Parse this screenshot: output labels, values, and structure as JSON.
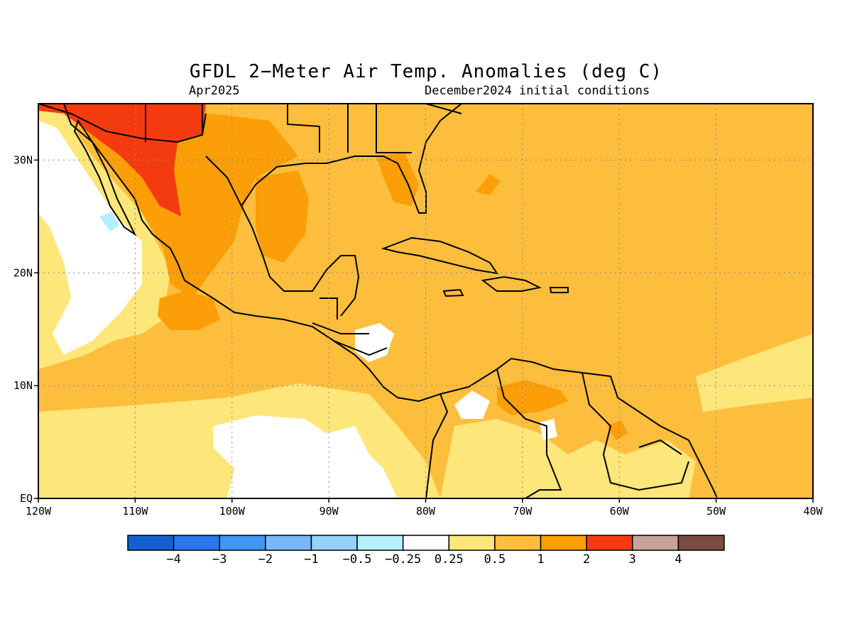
{
  "map": {
    "title": "GFDL 2−Meter Air Temp. Anomalies (deg C)",
    "valid_month": "Apr2025",
    "initial_conditions": "December2024 initial conditions",
    "region": {
      "lon_min": -120,
      "lon_max": -40,
      "lat_min": 0,
      "lat_max": 35
    },
    "lon_ticks": [
      {
        "value": -120,
        "label": "120W"
      },
      {
        "value": -110,
        "label": "110W"
      },
      {
        "value": -100,
        "label": "100W"
      },
      {
        "value": -90,
        "label": "90W"
      },
      {
        "value": -80,
        "label": "80W"
      },
      {
        "value": -70,
        "label": "70W"
      },
      {
        "value": -60,
        "label": "60W"
      },
      {
        "value": -50,
        "label": "50W"
      },
      {
        "value": -40,
        "label": "40W"
      }
    ],
    "lat_ticks": [
      {
        "value": 0,
        "label": "EQ"
      },
      {
        "value": 10,
        "label": "10N"
      },
      {
        "value": 20,
        "label": "20N"
      },
      {
        "value": 30,
        "label": "30N"
      }
    ],
    "gridlines": true
  },
  "colorbar": {
    "labels": [
      "−4",
      "−3",
      "−2",
      "−1",
      "−0.5",
      "−0.25",
      "0.25",
      "0.5",
      "1",
      "2",
      "3",
      "4"
    ],
    "colors": [
      "#1560d0",
      "#2a78ec",
      "#3f96f4",
      "#78b8f7",
      "#96d1fa",
      "#b4effd",
      "#ffffff",
      "#fde67a",
      "#fdbe3e",
      "#fb9e08",
      "#f43b10",
      "#c8a39a",
      "#7a4c42"
    ]
  },
  "colors": {
    "bg": "#fdbe3e",
    "c025": "#fde67a",
    "c05": "#fdbe3e",
    "c1": "#fb9e08",
    "c2": "#f43b10",
    "white": "#ffffff",
    "cyan": "#b4effd",
    "gray": "#c8a39a"
  }
}
